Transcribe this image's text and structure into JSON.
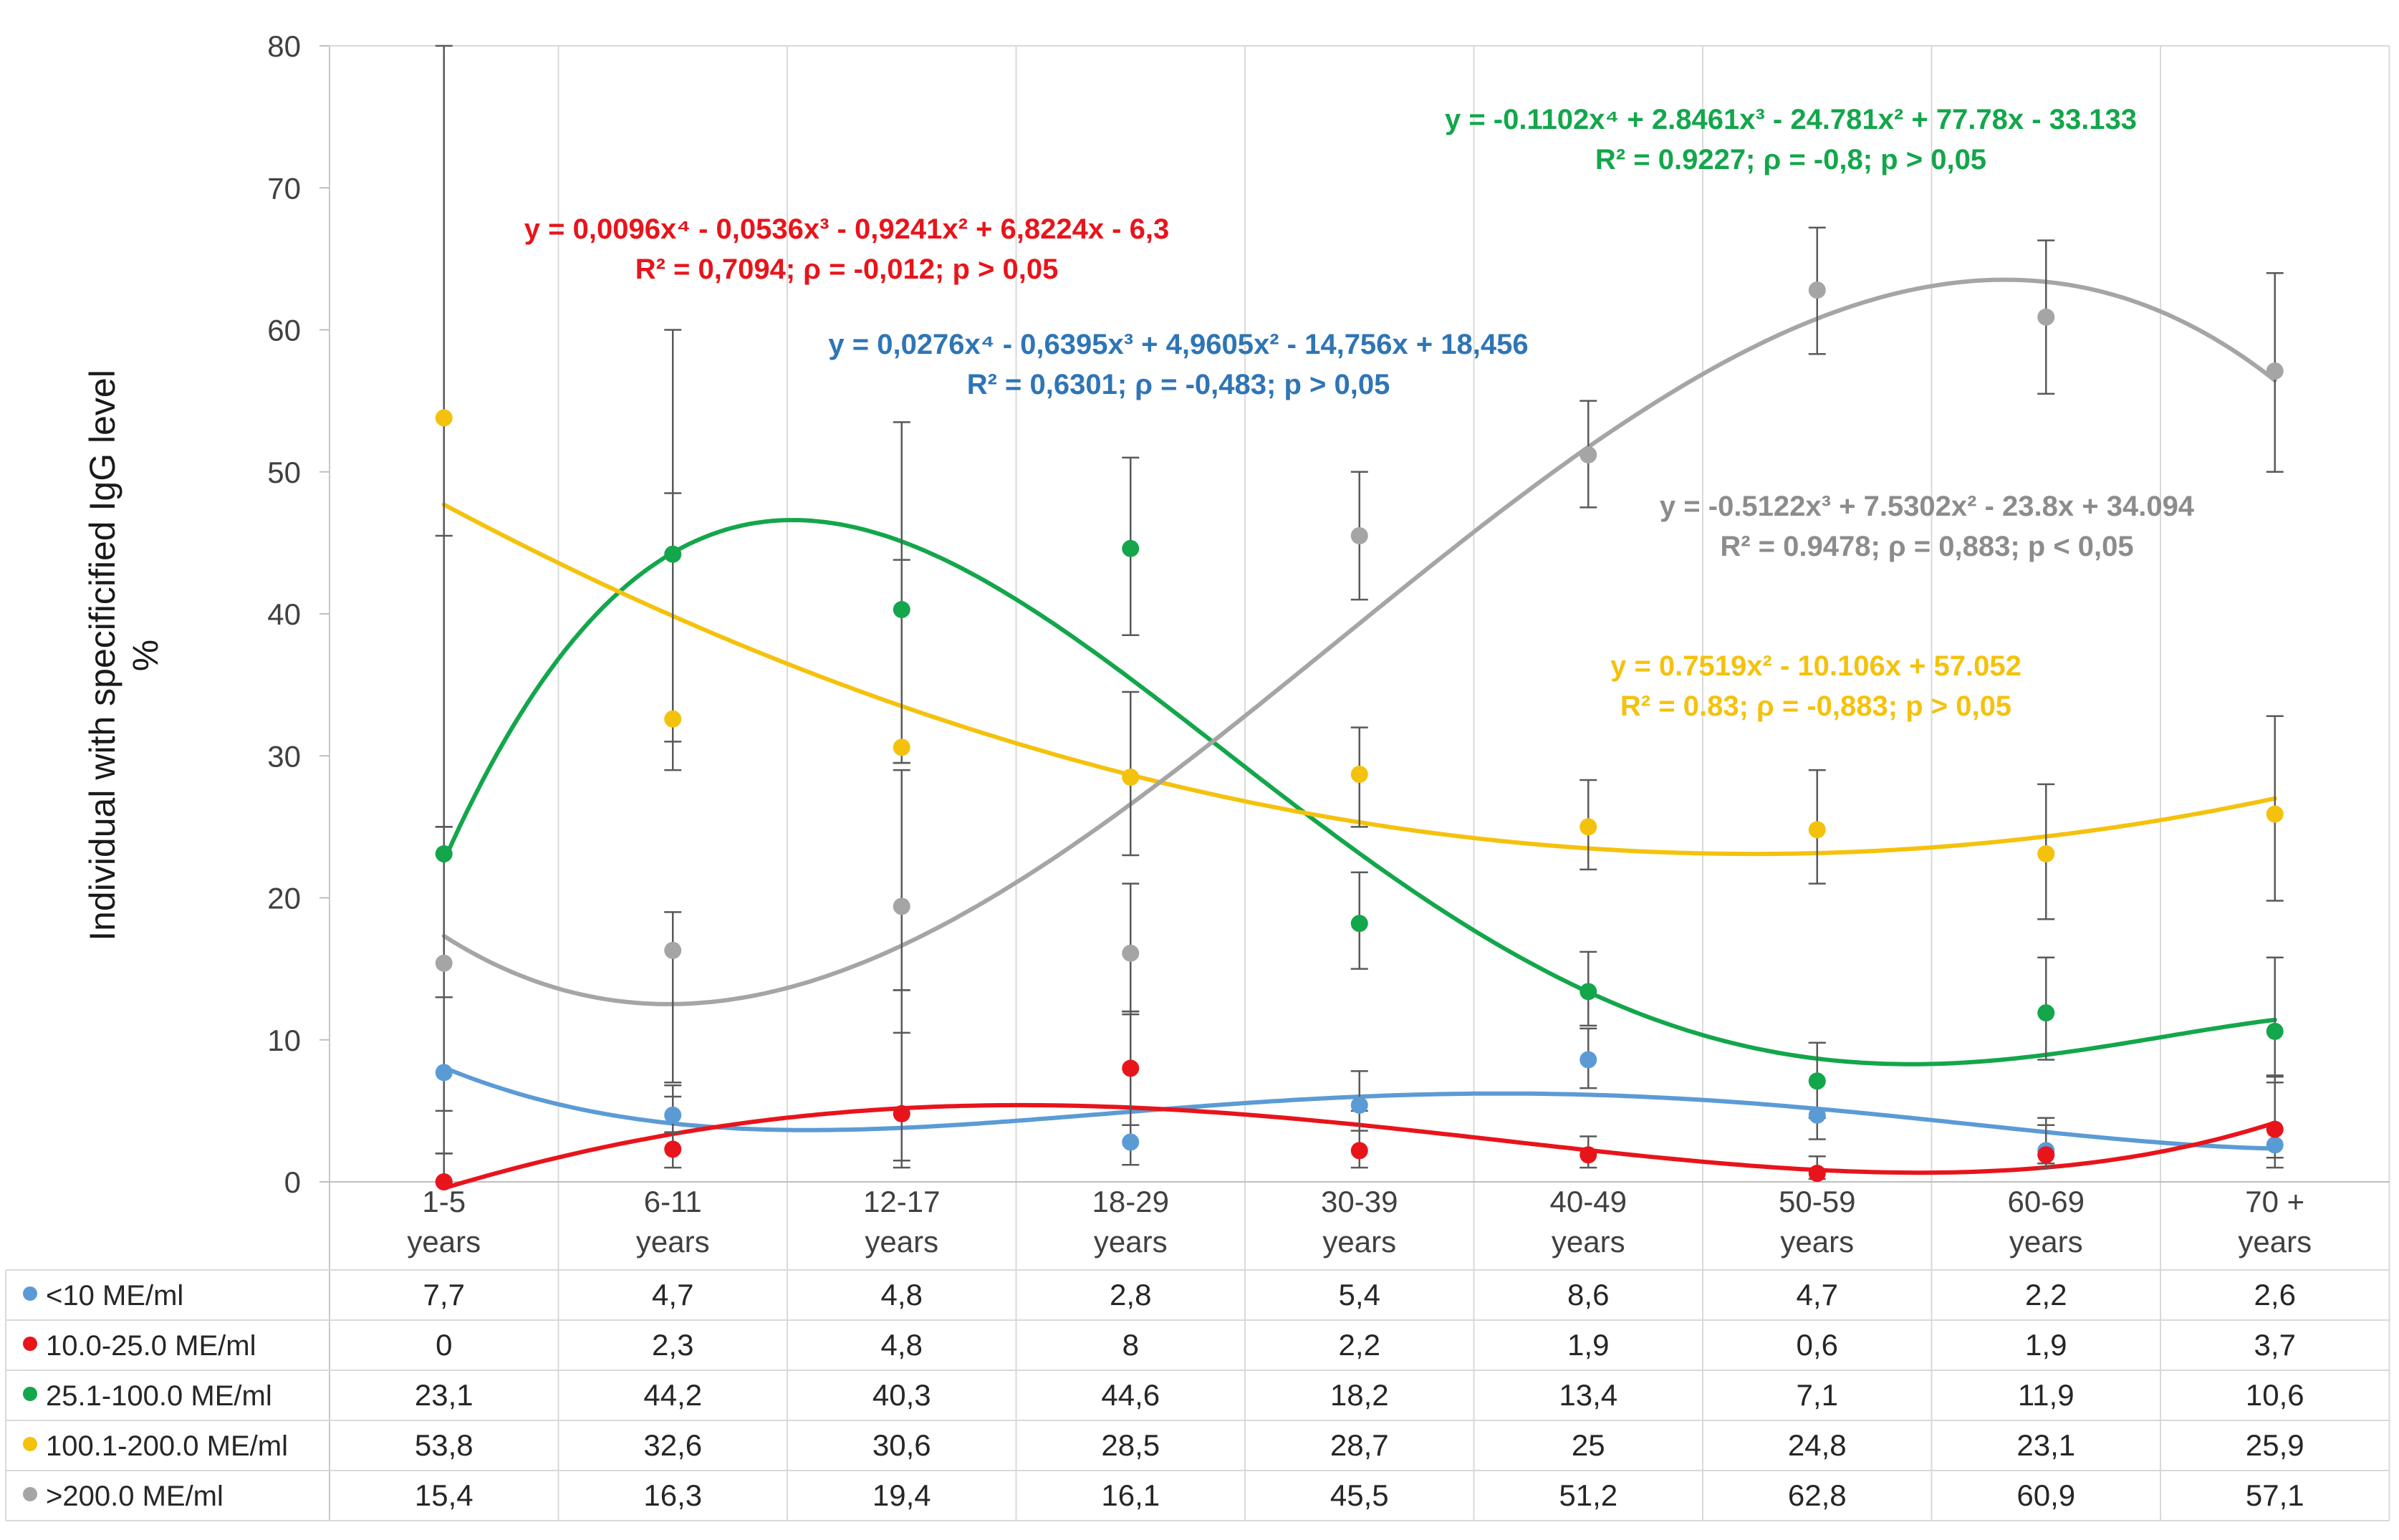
{
  "chart_data": {
    "type": "line",
    "ylabel_lines": [
      "Individual with specificified  IgG level",
      "%"
    ],
    "ylim": [
      0,
      80
    ],
    "yticks": [
      0,
      10,
      20,
      30,
      40,
      50,
      60,
      70,
      80
    ],
    "grid": {
      "horizontal": false,
      "vertical": true
    },
    "categories": [
      [
        "1-5",
        "years"
      ],
      [
        "6-11",
        "years"
      ],
      [
        "12-17",
        "years"
      ],
      [
        "18-29",
        "years"
      ],
      [
        "30-39",
        "years"
      ],
      [
        "40-49",
        "years"
      ],
      [
        "50-59",
        "years"
      ],
      [
        "60-69",
        "years"
      ],
      [
        "70 +",
        "years"
      ]
    ],
    "series": [
      {
        "name": "<10 ME/ml",
        "color": "#5b9bd5",
        "values": [
          "7,7",
          "4,7",
          "4,8",
          "2,8",
          "5,4",
          "8,6",
          "4,7",
          "2,2",
          "2,6"
        ],
        "error_low": [
          5.0,
          3.5,
          1.5,
          1.2,
          3.6,
          6.6,
          3.0,
          1.3,
          1.7
        ],
        "error_high": [
          13.0,
          6.8,
          10.5,
          11.8,
          7.8,
          10.8,
          9.8,
          4.0,
          7.0
        ],
        "trend_coeffs": [
          18.456,
          -14.756,
          4.9605,
          -0.6395,
          0.0276
        ],
        "equation": "y = 0,0276x⁴ - 0,6395x³ + 4,9605x² - 14,756x + 18,456",
        "r2": "R² = 0,6301; ρ = -0,483;  p > 0,05"
      },
      {
        "name": "10.0-25.0 ME/ml",
        "color": "#e8141b",
        "values": [
          "0",
          "2,3",
          "4,8",
          "8",
          "2,2",
          "1,9",
          "0,6",
          "1,9",
          "3,7"
        ],
        "error_low": [
          0,
          1.0,
          1.0,
          4.0,
          1.0,
          1.0,
          0.2,
          1.0,
          1.0
        ],
        "error_high": [
          2.0,
          6.0,
          13.5,
          12.0,
          5.0,
          3.2,
          1.8,
          4.5,
          7.5
        ],
        "trend_coeffs": [
          -6.3,
          6.8224,
          -0.9241,
          -0.0536,
          0.0096
        ],
        "equation": "y = 0,0096x⁴ - 0,0536x³ - 0,9241x² + 6,8224x - 6,3",
        "r2": "R² = 0,7094; ρ = -0,012; p > 0,05"
      },
      {
        "name": "25.1-100.0 ME/ml",
        "color": "#13a64b",
        "values": [
          "23,1",
          "44,2",
          "40,3",
          "44,6",
          "18,2",
          "13,4",
          "7,1",
          "11,9",
          "10,6"
        ],
        "error_low": [
          13.0,
          29.0,
          29.5,
          38.5,
          15.0,
          11.0,
          4.5,
          8.6,
          7.4
        ],
        "error_high": [
          45.5,
          48.5,
          43.8,
          51.0,
          21.8,
          16.2,
          9.8,
          15.8,
          15.8
        ],
        "trend_coeffs": [
          -33.133,
          77.78,
          -24.781,
          2.8461,
          -0.1102
        ],
        "equation": "y = -0.1102x⁴ + 2.8461x³ - 24.781x² + 77.78x - 33.133",
        "r2": "R² = 0.9227; ρ = -0,8; p > 0,05"
      },
      {
        "name": "100.1-200.0 ME/ml",
        "color": "#f4c20d",
        "values": [
          "53,8",
          "32,6",
          "30,6",
          "28,5",
          "28,7",
          "25",
          "24,8",
          "23,1",
          "25,9"
        ],
        "error_low": [
          25.0,
          31.0,
          29.5,
          23.0,
          25.0,
          22.0,
          21.0,
          18.5,
          19.8
        ],
        "error_high": [
          80.0,
          60.0,
          53.5,
          34.5,
          32.0,
          28.3,
          29.0,
          28.0,
          32.8
        ],
        "trend_coeffs": [
          57.052,
          -10.106,
          0.7519
        ],
        "equation": "y = 0.7519x² - 10.106x + 57.052",
        "r2": "R² = 0.83; ρ = -0,883; p > 0,05"
      },
      {
        "name": ">200.0 ME/ml",
        "color": "#a5a5a5",
        "values": [
          "15,4",
          "16,3",
          "19,4",
          "16,1",
          "45,5",
          "51,2",
          "62,8",
          "60,9",
          "57,1"
        ],
        "error_low": [
          2.0,
          7.0,
          13.5,
          12.0,
          41.0,
          47.5,
          58.3,
          55.5,
          50.0
        ],
        "error_high": [
          25.0,
          19.0,
          29.0,
          21.0,
          50.0,
          55.0,
          67.2,
          66.3,
          64.0
        ],
        "trend_coeffs": [
          34.094,
          -23.8,
          7.5302,
          -0.5122
        ],
        "equation": "y = -0.5122x³ + 7.5302x² - 23.8x + 34.094",
        "r2": "R² = 0.9478; ρ = 0,883; p < 0,05"
      }
    ]
  }
}
